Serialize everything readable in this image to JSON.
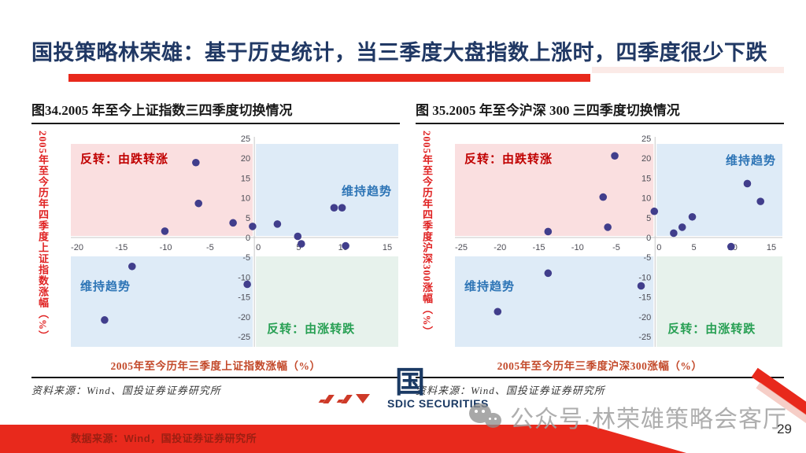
{
  "slide": {
    "title": "国投策略林荣雄：基于历史统计，当三季度大盘指数上涨时，四季度很少下跌",
    "page_number": "29",
    "watermark_text": "公众号·林荣雄策略会客厅",
    "banner_text": "数据来源：Wind，国投证券证券研究所",
    "logo": {
      "mark": "国投",
      "name": "SDIC SECURITIES"
    },
    "colors": {
      "accent_red": "#E8291C",
      "title_navy": "#203864",
      "point": "#413E8C",
      "quad_pink": "#FADFE0",
      "quad_blue": "#DEEBF7",
      "quad_green": "#E7F2EC",
      "label_red": "#C00000",
      "label_blue": "#2E75B6",
      "label_green": "#28A054",
      "tick": "#4C4C55",
      "axis_line": "#C9C9C9",
      "xlabel_color": "#C34A2B",
      "ylabel_color": "#E02222",
      "banner_text_color": "#9B1F12",
      "logo_navy": "#1B3A64",
      "watermark_gray": "#A0A0A0"
    }
  },
  "chart_data": [
    {
      "type": "scatter",
      "title": "图34.2005 年至今上证指数三四季度切换情况",
      "xlabel": "2005年至今历年三季度上证指数涨幅（%）",
      "ylabel": "2005年至今历年四季度上证指数涨幅（%）",
      "source": "资料来源：Wind、国投证券证券研究所",
      "xlim": [
        -20,
        15
      ],
      "ylim": [
        -25,
        25
      ],
      "xticks": [
        -20,
        -15,
        -10,
        -5,
        0,
        5,
        10,
        15
      ],
      "yticks": [
        25,
        20,
        15,
        10,
        5,
        0,
        -5,
        -10,
        -15,
        -20,
        -25
      ],
      "grid": false,
      "legend": null,
      "quadrant_labels": {
        "top_left": "反转：由跌转涨",
        "top_right": "维持趋势",
        "bottom_left": "维持趋势",
        "bottom_right": "反转：由涨转跌"
      },
      "points": [
        [
          -6.6,
          18.9
        ],
        [
          -6.3,
          8.6
        ],
        [
          -10.1,
          1.6
        ],
        [
          -2.4,
          3.7
        ],
        [
          -0.2,
          2.8
        ],
        [
          2.6,
          3.4
        ],
        [
          4.9,
          0.3
        ],
        [
          5.3,
          -1.6
        ],
        [
          9.0,
          7.5
        ],
        [
          9.9,
          7.5
        ],
        [
          10.3,
          -2.1
        ],
        [
          -13.8,
          -7.3
        ],
        [
          -0.8,
          -11.8
        ],
        [
          -16.9,
          -20.8
        ]
      ],
      "tr_label_dy": 65
    },
    {
      "type": "scatter",
      "title": "图 35.2005 年至今沪深 300 三四季度切换情况",
      "xlabel": "2005年至今历年三季度沪深300涨幅（%）",
      "ylabel": "2005年至今历年四季度沪深300涨幅（%）",
      "source": "资料来源：Wind、国投证券证券研究所",
      "xlim": [
        -25,
        15
      ],
      "ylim": [
        -25,
        25
      ],
      "xticks": [
        -25,
        -20,
        -15,
        -10,
        -5,
        0,
        5,
        10,
        15
      ],
      "yticks": [
        25,
        20,
        15,
        10,
        5,
        0,
        -5,
        -10,
        -15,
        -20,
        -25
      ],
      "grid": false,
      "legend": null,
      "quadrant_labels": {
        "top_left": "反转：由跌转涨",
        "top_right": "维持趋势",
        "bottom_left": "维持趋势",
        "bottom_right": "反转：由涨转跌"
      },
      "points": [
        [
          -5.2,
          20.6
        ],
        [
          -6.7,
          10.2
        ],
        [
          -6.1,
          2.6
        ],
        [
          -13.8,
          1.5
        ],
        [
          -0.1,
          6.6
        ],
        [
          2.4,
          1.1
        ],
        [
          3.5,
          2.6
        ],
        [
          4.8,
          5.2
        ],
        [
          11.9,
          13.6
        ],
        [
          13.6,
          9.1
        ],
        [
          9.8,
          -2.3
        ],
        [
          -13.8,
          -9.0
        ],
        [
          -1.8,
          -12.2
        ],
        [
          -20.3,
          -18.7
        ]
      ],
      "tr_label_dy": 26
    }
  ]
}
